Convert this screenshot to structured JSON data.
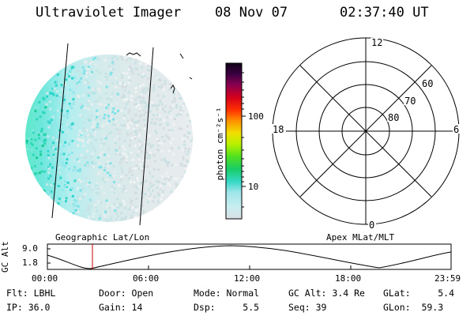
{
  "header": {
    "instrument": "Ultraviolet Imager",
    "date": "08 Nov 07",
    "time": "02:37:40 UT"
  },
  "colorbar": {
    "unit_label": "photon cm⁻²s⁻¹",
    "ticks": [
      "100",
      "10"
    ]
  },
  "polar_plot": {
    "mlt_labels": {
      "top": "12",
      "left": "18",
      "right": "6",
      "bottom": "0"
    },
    "lat_labels": [
      "60",
      "70",
      "80"
    ],
    "title": "Apex MLat/MLT"
  },
  "image_panel": {
    "title": "Geographic Lat/Lon"
  },
  "altitude_plot": {
    "ylabel": "GC Alt",
    "y_ticks": [
      "9.0",
      "1.8"
    ],
    "x_ticks": [
      "00:00",
      "06:00",
      "12:00",
      "18:00",
      "23:59"
    ]
  },
  "status": {
    "filter": "Flt: LBHL",
    "ip": "IP: 36.0",
    "door": "Door: Open",
    "gain": "Gain: 14",
    "mode": "Mode: Normal",
    "dsp": "Dsp:     5.5",
    "gc_alt": "GC Alt: 3.4 Re",
    "seq": "Seq: 39",
    "glat": "GLat:     5.4",
    "glon": "GLon:  59.3"
  },
  "colors": {
    "marker": "#cc0000",
    "colormap": [
      "#d8e0e4",
      "#9fe6ea",
      "#35d8c6",
      "#19cc66",
      "#50e020",
      "#b8f000",
      "#f0e000",
      "#ff9000",
      "#ff1800",
      "#d4001c",
      "#8a0050",
      "#1a0030"
    ]
  }
}
